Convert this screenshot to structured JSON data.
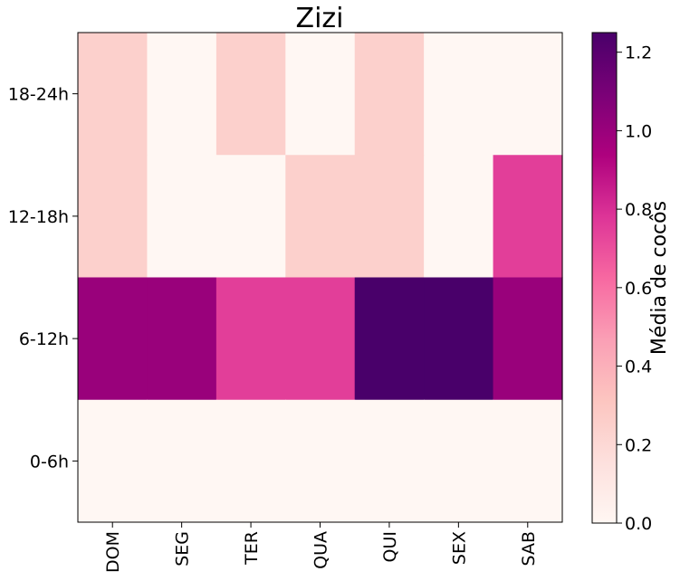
{
  "chart_data": {
    "type": "heatmap",
    "title": "Zizi",
    "x_categories": [
      "DOM",
      "SEG",
      "TER",
      "QUA",
      "QUI",
      "SEX",
      "SAB"
    ],
    "y_categories": [
      "18-24h",
      "12-18h",
      "6-12h",
      "0-6h"
    ],
    "values": [
      [
        0.25,
        0.0,
        0.25,
        0.0,
        0.25,
        0.0,
        0.0
      ],
      [
        0.25,
        0.0,
        0.0,
        0.25,
        0.25,
        0.0,
        0.75
      ],
      [
        1.0,
        1.0,
        0.75,
        0.75,
        1.25,
        1.25,
        1.0
      ],
      [
        0.0,
        0.0,
        0.0,
        0.0,
        0.0,
        0.0,
        0.0
      ]
    ],
    "colorbar": {
      "label": "Média de cocôs",
      "range": [
        0,
        1.25
      ],
      "ticks": [
        0.0,
        0.2,
        0.4,
        0.6,
        0.8,
        1.0,
        1.2
      ],
      "tick_labels": [
        "0.0",
        "0.2",
        "0.4",
        "0.6",
        "0.8",
        "1.0",
        "1.2"
      ],
      "colormap": [
        "#fff7f3",
        "#fde0dd",
        "#fcc5c0",
        "#fa9fb5",
        "#f768a1",
        "#dd3497",
        "#ae017e",
        "#7a0177",
        "#49006a"
      ]
    },
    "grid": false
  }
}
